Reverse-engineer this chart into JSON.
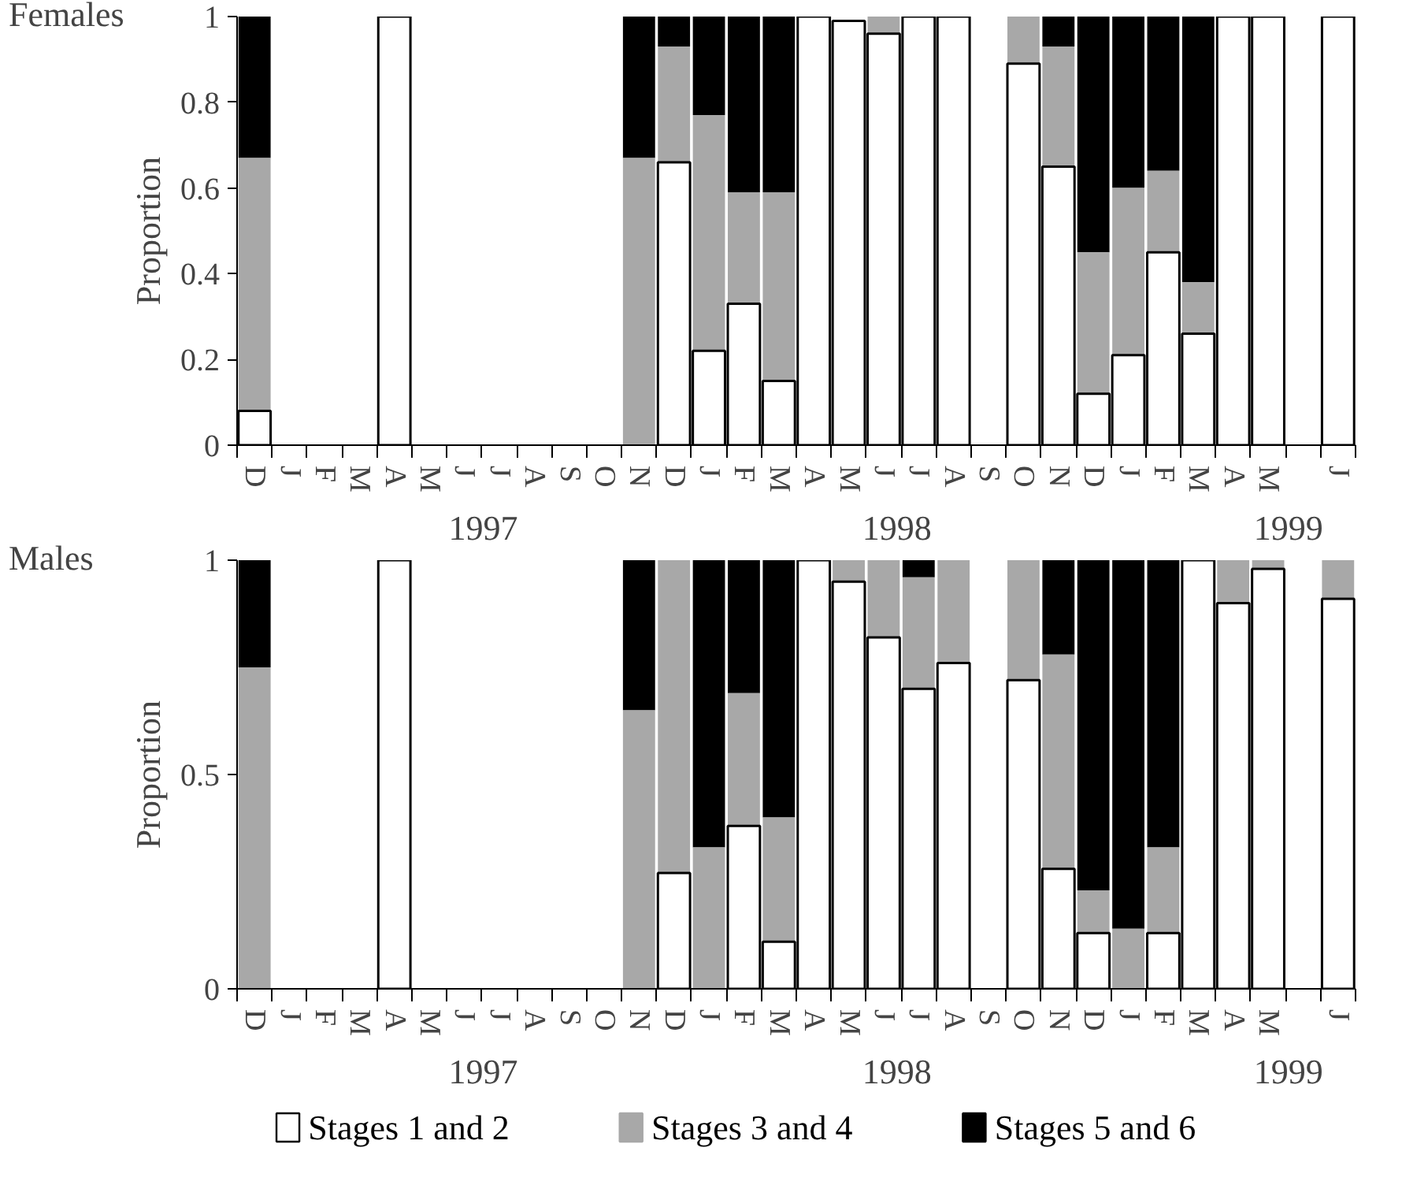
{
  "chart_data": [
    {
      "type": "bar",
      "title": "Females",
      "ylabel": "Proportion",
      "stacked": true,
      "categories": [
        "D",
        "J",
        "F",
        "M",
        "A",
        "M",
        "J",
        "J",
        "A",
        "S",
        "O",
        "N",
        "D",
        "J",
        "F",
        "M",
        "A",
        "M",
        "J",
        "J",
        "A",
        "S",
        "O",
        "N",
        "D",
        "J",
        "F",
        "M",
        "A",
        "M",
        null,
        "J"
      ],
      "series": [
        {
          "color": "#ffffff",
          "values": [
            0.08,
            null,
            null,
            null,
            1,
            null,
            null,
            null,
            null,
            null,
            null,
            null,
            0.66,
            0.22,
            0.33,
            0.15,
            1,
            0.99,
            0.96,
            1,
            1,
            null,
            0.89,
            0.65,
            0.12,
            0.21,
            0.45,
            0.26,
            1,
            1,
            null,
            1
          ]
        },
        {
          "color": "#a8a8a8",
          "values": [
            0.59,
            null,
            null,
            null,
            null,
            null,
            null,
            null,
            null,
            null,
            null,
            0.67,
            0.27,
            0.55,
            0.26,
            0.44,
            null,
            null,
            0.04,
            null,
            null,
            null,
            0.11,
            0.28,
            0.33,
            0.39,
            0.19,
            0.12,
            null,
            null,
            null,
            null
          ]
        },
        {
          "color": "#000000",
          "values": [
            0.33,
            null,
            null,
            null,
            null,
            null,
            null,
            null,
            null,
            null,
            null,
            0.33,
            0.07,
            0.23,
            0.41,
            0.41,
            null,
            null,
            null,
            null,
            null,
            null,
            null,
            0.07,
            0.55,
            0.4,
            0.36,
            0.62,
            null,
            null,
            null,
            null
          ]
        }
      ],
      "ylim": [
        0,
        1
      ],
      "yticks": [
        0,
        {
          "value": 0.2,
          "label": "0.2"
        },
        {
          "value": 0.4,
          "label": "0.4"
        },
        {
          "value": 0.6,
          "label": "0.6"
        },
        {
          "value": 0.8,
          "label": "0.8"
        },
        1
      ],
      "annotations": [
        "1997",
        "1998",
        "1999"
      ],
      "grid": false,
      "legend": false
    },
    {
      "type": "bar",
      "title": "Males",
      "ylabel": "Proportion",
      "stacked": true,
      "categories": [
        "D",
        "J",
        "F",
        "M",
        "A",
        "M",
        "J",
        "J",
        "A",
        "S",
        "O",
        "N",
        "D",
        "J",
        "F",
        "M",
        "A",
        "M",
        "J",
        "J",
        "A",
        "S",
        "O",
        "N",
        "D",
        "J",
        "F",
        "M",
        "A",
        "M",
        null,
        "J"
      ],
      "series": [
        {
          "name": "Stages 1 and 2",
          "color": "#ffffff",
          "values": [
            null,
            null,
            null,
            null,
            1,
            null,
            null,
            null,
            null,
            null,
            null,
            null,
            0.27,
            null,
            0.38,
            0.11,
            1,
            0.95,
            0.82,
            0.7,
            0.76,
            null,
            0.72,
            0.28,
            0.13,
            null,
            0.13,
            1,
            0.9,
            0.98,
            null,
            0.91
          ]
        },
        {
          "name": "Stages 3 and 4",
          "color": "#a8a8a8",
          "values": [
            0.75,
            null,
            null,
            null,
            null,
            null,
            null,
            null,
            null,
            null,
            null,
            0.65,
            0.73,
            0.33,
            0.31,
            0.29,
            null,
            0.05,
            0.18,
            0.26,
            0.24,
            null,
            0.28,
            0.5,
            0.1,
            0.14,
            0.2,
            null,
            0.1,
            0.02,
            null,
            0.09
          ]
        },
        {
          "name": "Stages 5 and 6",
          "color": "#000000",
          "values": [
            0.25,
            null,
            null,
            null,
            null,
            null,
            null,
            null,
            null,
            null,
            null,
            0.35,
            null,
            0.67,
            0.31,
            0.6,
            null,
            null,
            null,
            0.04,
            null,
            null,
            null,
            0.22,
            0.77,
            0.86,
            0.67,
            null,
            null,
            null,
            null,
            null
          ]
        }
      ],
      "ylim": [
        0,
        1
      ],
      "yticks": [
        0,
        {
          "value": 0.5,
          "label": "0.5"
        },
        1
      ],
      "annotations": [
        "1997",
        "1998",
        "1999"
      ],
      "grid": false,
      "legend": "bottom"
    }
  ]
}
